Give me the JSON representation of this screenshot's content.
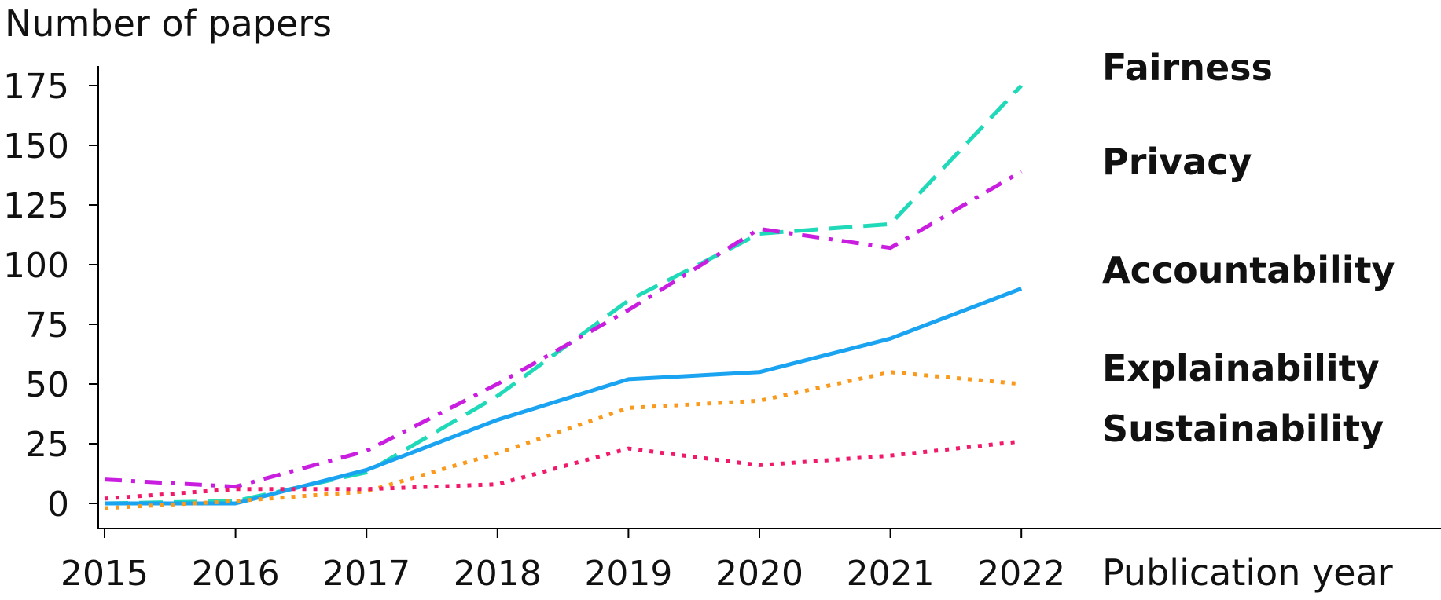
{
  "chart_data": {
    "type": "line",
    "title": "",
    "xlabel": "Publication year",
    "ylabel": "Number of papers",
    "x": [
      2015,
      2016,
      2017,
      2018,
      2019,
      2020,
      2021,
      2022
    ],
    "xticks": [
      "2015",
      "2016",
      "2017",
      "2018",
      "2019",
      "2020",
      "2021",
      "2022"
    ],
    "yticks": [
      "0",
      "25",
      "50",
      "75",
      "100",
      "125",
      "150",
      "175"
    ],
    "ylim": [
      0,
      175
    ],
    "grid": false,
    "legend": "direct labels at right end of lines",
    "series": [
      {
        "name": "Fairness",
        "values": [
          0,
          1,
          13,
          45,
          85,
          113,
          117,
          175
        ],
        "color": "#1fd9b8",
        "style": "dashed"
      },
      {
        "name": "Privacy",
        "values": [
          10,
          7,
          22,
          50,
          81,
          115,
          107,
          139
        ],
        "color": "#c91ee0",
        "style": "dashdot"
      },
      {
        "name": "Accountability",
        "values": [
          0,
          0,
          14,
          35,
          52,
          55,
          69,
          90
        ],
        "color": "#1aa3f0",
        "style": "solid"
      },
      {
        "name": "Explainability",
        "values": [
          -2,
          1,
          5,
          21,
          40,
          43,
          55,
          50
        ],
        "color": "#f99a1c",
        "style": "dotted"
      },
      {
        "name": "Sustainability",
        "values": [
          2,
          6,
          6,
          8,
          23,
          16,
          20,
          26
        ],
        "color": "#f0196a",
        "style": "dotted"
      }
    ]
  }
}
